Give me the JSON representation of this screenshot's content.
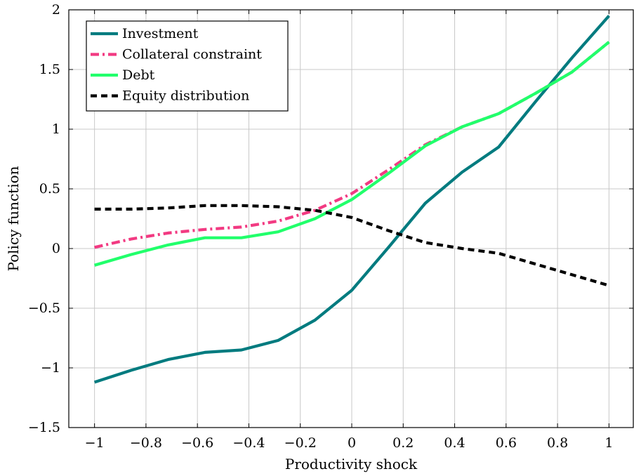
{
  "chart_data": {
    "type": "line",
    "title": "",
    "xlabel": "Productivity shock",
    "ylabel": "Policy function",
    "xlim": [
      -1.1,
      1.1
    ],
    "ylim": [
      -1.5,
      2
    ],
    "xticks": [
      -1,
      -0.8,
      -0.6,
      -0.4,
      -0.2,
      0,
      0.2,
      0.4,
      0.6,
      0.8,
      1
    ],
    "xtick_labels": [
      "−1",
      "−0.8",
      "−0.6",
      "−0.4",
      "−0.2",
      "0",
      "0.2",
      "0.4",
      "0.6",
      "0.8",
      "1"
    ],
    "yticks": [
      -1.5,
      -1,
      -0.5,
      0,
      0.5,
      1,
      1.5,
      2
    ],
    "ytick_labels": [
      "−1.5",
      "−1",
      "−0.5",
      "0",
      "0.5",
      "1",
      "1.5",
      "2"
    ],
    "grid": true,
    "legend_position": "top-left",
    "x": [
      -1,
      -0.857,
      -0.714,
      -0.571,
      -0.429,
      -0.286,
      -0.143,
      0,
      0.143,
      0.286,
      0.429,
      0.571,
      0.714,
      0.857,
      1
    ],
    "series": [
      {
        "name": "Investment",
        "color": "#007b7f",
        "dash": "solid",
        "values": [
          -1.12,
          -1.02,
          -0.93,
          -0.87,
          -0.85,
          -0.77,
          -0.6,
          -0.35,
          0.01,
          0.38,
          0.64,
          0.85,
          1.23,
          1.6,
          1.95
        ]
      },
      {
        "name": "Collateral constraint",
        "color": "#f23a82",
        "dash": "dash-dot",
        "values": [
          0.01,
          0.08,
          0.13,
          0.16,
          0.18,
          0.23,
          0.32,
          0.46,
          0.66,
          0.87,
          1.02,
          1.13,
          1.3,
          1.48,
          1.73
        ]
      },
      {
        "name": "Debt",
        "color": "#21ff6b",
        "dash": "solid",
        "values": [
          -0.14,
          -0.05,
          0.03,
          0.09,
          0.09,
          0.14,
          0.25,
          0.41,
          0.63,
          0.86,
          1.02,
          1.13,
          1.3,
          1.48,
          1.73
        ]
      },
      {
        "name": "Equity distribution",
        "color": "#000000",
        "dash": "dashed",
        "values": [
          0.33,
          0.33,
          0.34,
          0.36,
          0.36,
          0.35,
          0.32,
          0.26,
          0.15,
          0.05,
          0.0,
          -0.04,
          -0.13,
          -0.22,
          -0.31
        ]
      }
    ]
  }
}
